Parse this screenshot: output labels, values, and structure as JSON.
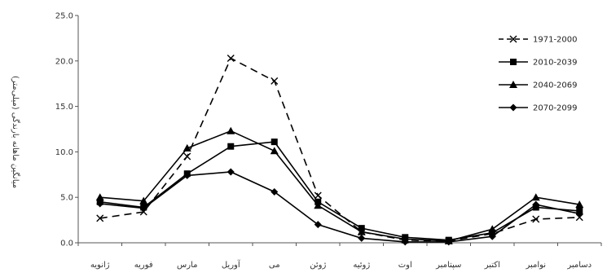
{
  "chart_data": {
    "type": "line",
    "title": "",
    "xlabel": "",
    "ylabel": "میانگین ماهانه بارندگی (میلی‌متر)",
    "ylim": [
      0,
      25
    ],
    "yticks": [
      "0.0",
      "5.0",
      "10.0",
      "15.0",
      "20.0",
      "25.0"
    ],
    "categories": [
      "ژانویه",
      "فوریه",
      "مارس",
      "آوریل",
      "می",
      "ژوئن",
      "ژوئیه",
      "اوت",
      "سپتامبر",
      "اکتبر",
      "نوامبر",
      "دسامبر"
    ],
    "legend_position": "top-right",
    "series": [
      {
        "name": "1971-2000",
        "marker": "x",
        "dash": true,
        "color": "#000000",
        "values": [
          2.7,
          3.4,
          9.5,
          20.3,
          17.8,
          5.2,
          1.2,
          0.3,
          0.2,
          1.0,
          2.6,
          2.8
        ]
      },
      {
        "name": "2010-2039",
        "marker": "square",
        "dash": false,
        "color": "#000000",
        "values": [
          4.5,
          3.9,
          7.6,
          10.6,
          11.1,
          4.5,
          1.6,
          0.6,
          0.3,
          1.1,
          3.9,
          3.5
        ]
      },
      {
        "name": "2040-2069",
        "marker": "triangle",
        "dash": false,
        "color": "#000000",
        "values": [
          5.0,
          4.6,
          10.4,
          12.3,
          10.1,
          4.1,
          1.2,
          0.4,
          0.2,
          1.5,
          5.0,
          4.2
        ]
      },
      {
        "name": "2070-2099",
        "marker": "diamond",
        "dash": false,
        "color": "#000000",
        "values": [
          4.3,
          3.8,
          7.4,
          7.8,
          5.6,
          2.0,
          0.5,
          0.1,
          0.1,
          0.7,
          4.2,
          3.2
        ]
      }
    ]
  }
}
